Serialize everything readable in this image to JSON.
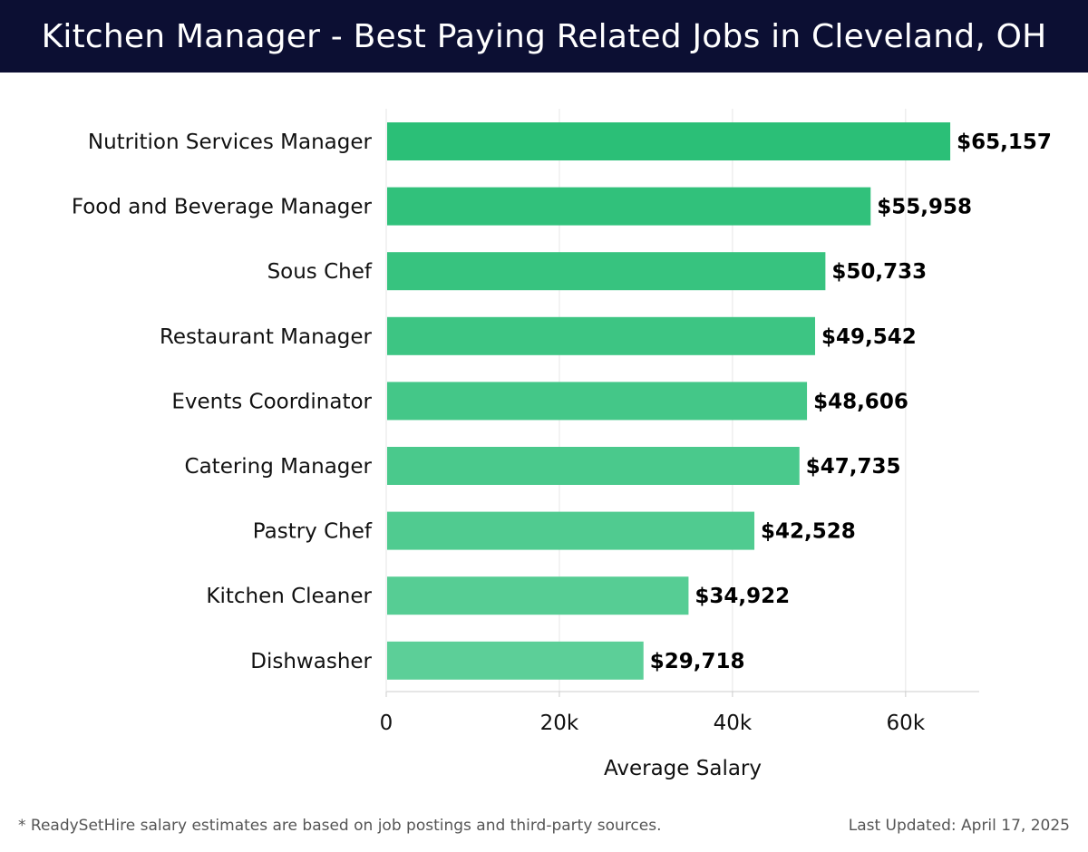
{
  "header": {
    "title": "Kitchen Manager - Best Paying Related Jobs in Cleveland, OH"
  },
  "footer": {
    "note": "* ReadySetHire salary estimates are based on job postings and third-party sources.",
    "updated": "Last Updated: April 17, 2025"
  },
  "colors": {
    "header_bg": "#0c0f33",
    "bar_dark": "#2bbf77",
    "bar_light": "#5ccf98",
    "grid": "#e6e6e6",
    "axis": "#cccccc"
  },
  "chart_data": {
    "type": "bar",
    "orientation": "horizontal",
    "title": "Kitchen Manager - Best Paying Related Jobs in Cleveland, OH",
    "xlabel": "Average Salary",
    "ylabel": "",
    "categories": [
      "Nutrition Services Manager",
      "Food and Beverage Manager",
      "Sous Chef",
      "Restaurant Manager",
      "Events Coordinator",
      "Catering Manager",
      "Pastry Chef",
      "Kitchen Cleaner",
      "Dishwasher"
    ],
    "values": [
      65157,
      55958,
      50733,
      49542,
      48606,
      47735,
      42528,
      34922,
      29718
    ],
    "value_labels": [
      "$65,157",
      "$55,958",
      "$50,733",
      "$49,542",
      "$48,606",
      "$47,735",
      "$42,528",
      "$34,922",
      "$29,718"
    ],
    "xlim": [
      0,
      68500
    ],
    "xticks": [
      0,
      20000,
      40000,
      60000
    ],
    "xtick_labels": [
      "0",
      "20k",
      "40k",
      "60k"
    ],
    "grid": true
  }
}
